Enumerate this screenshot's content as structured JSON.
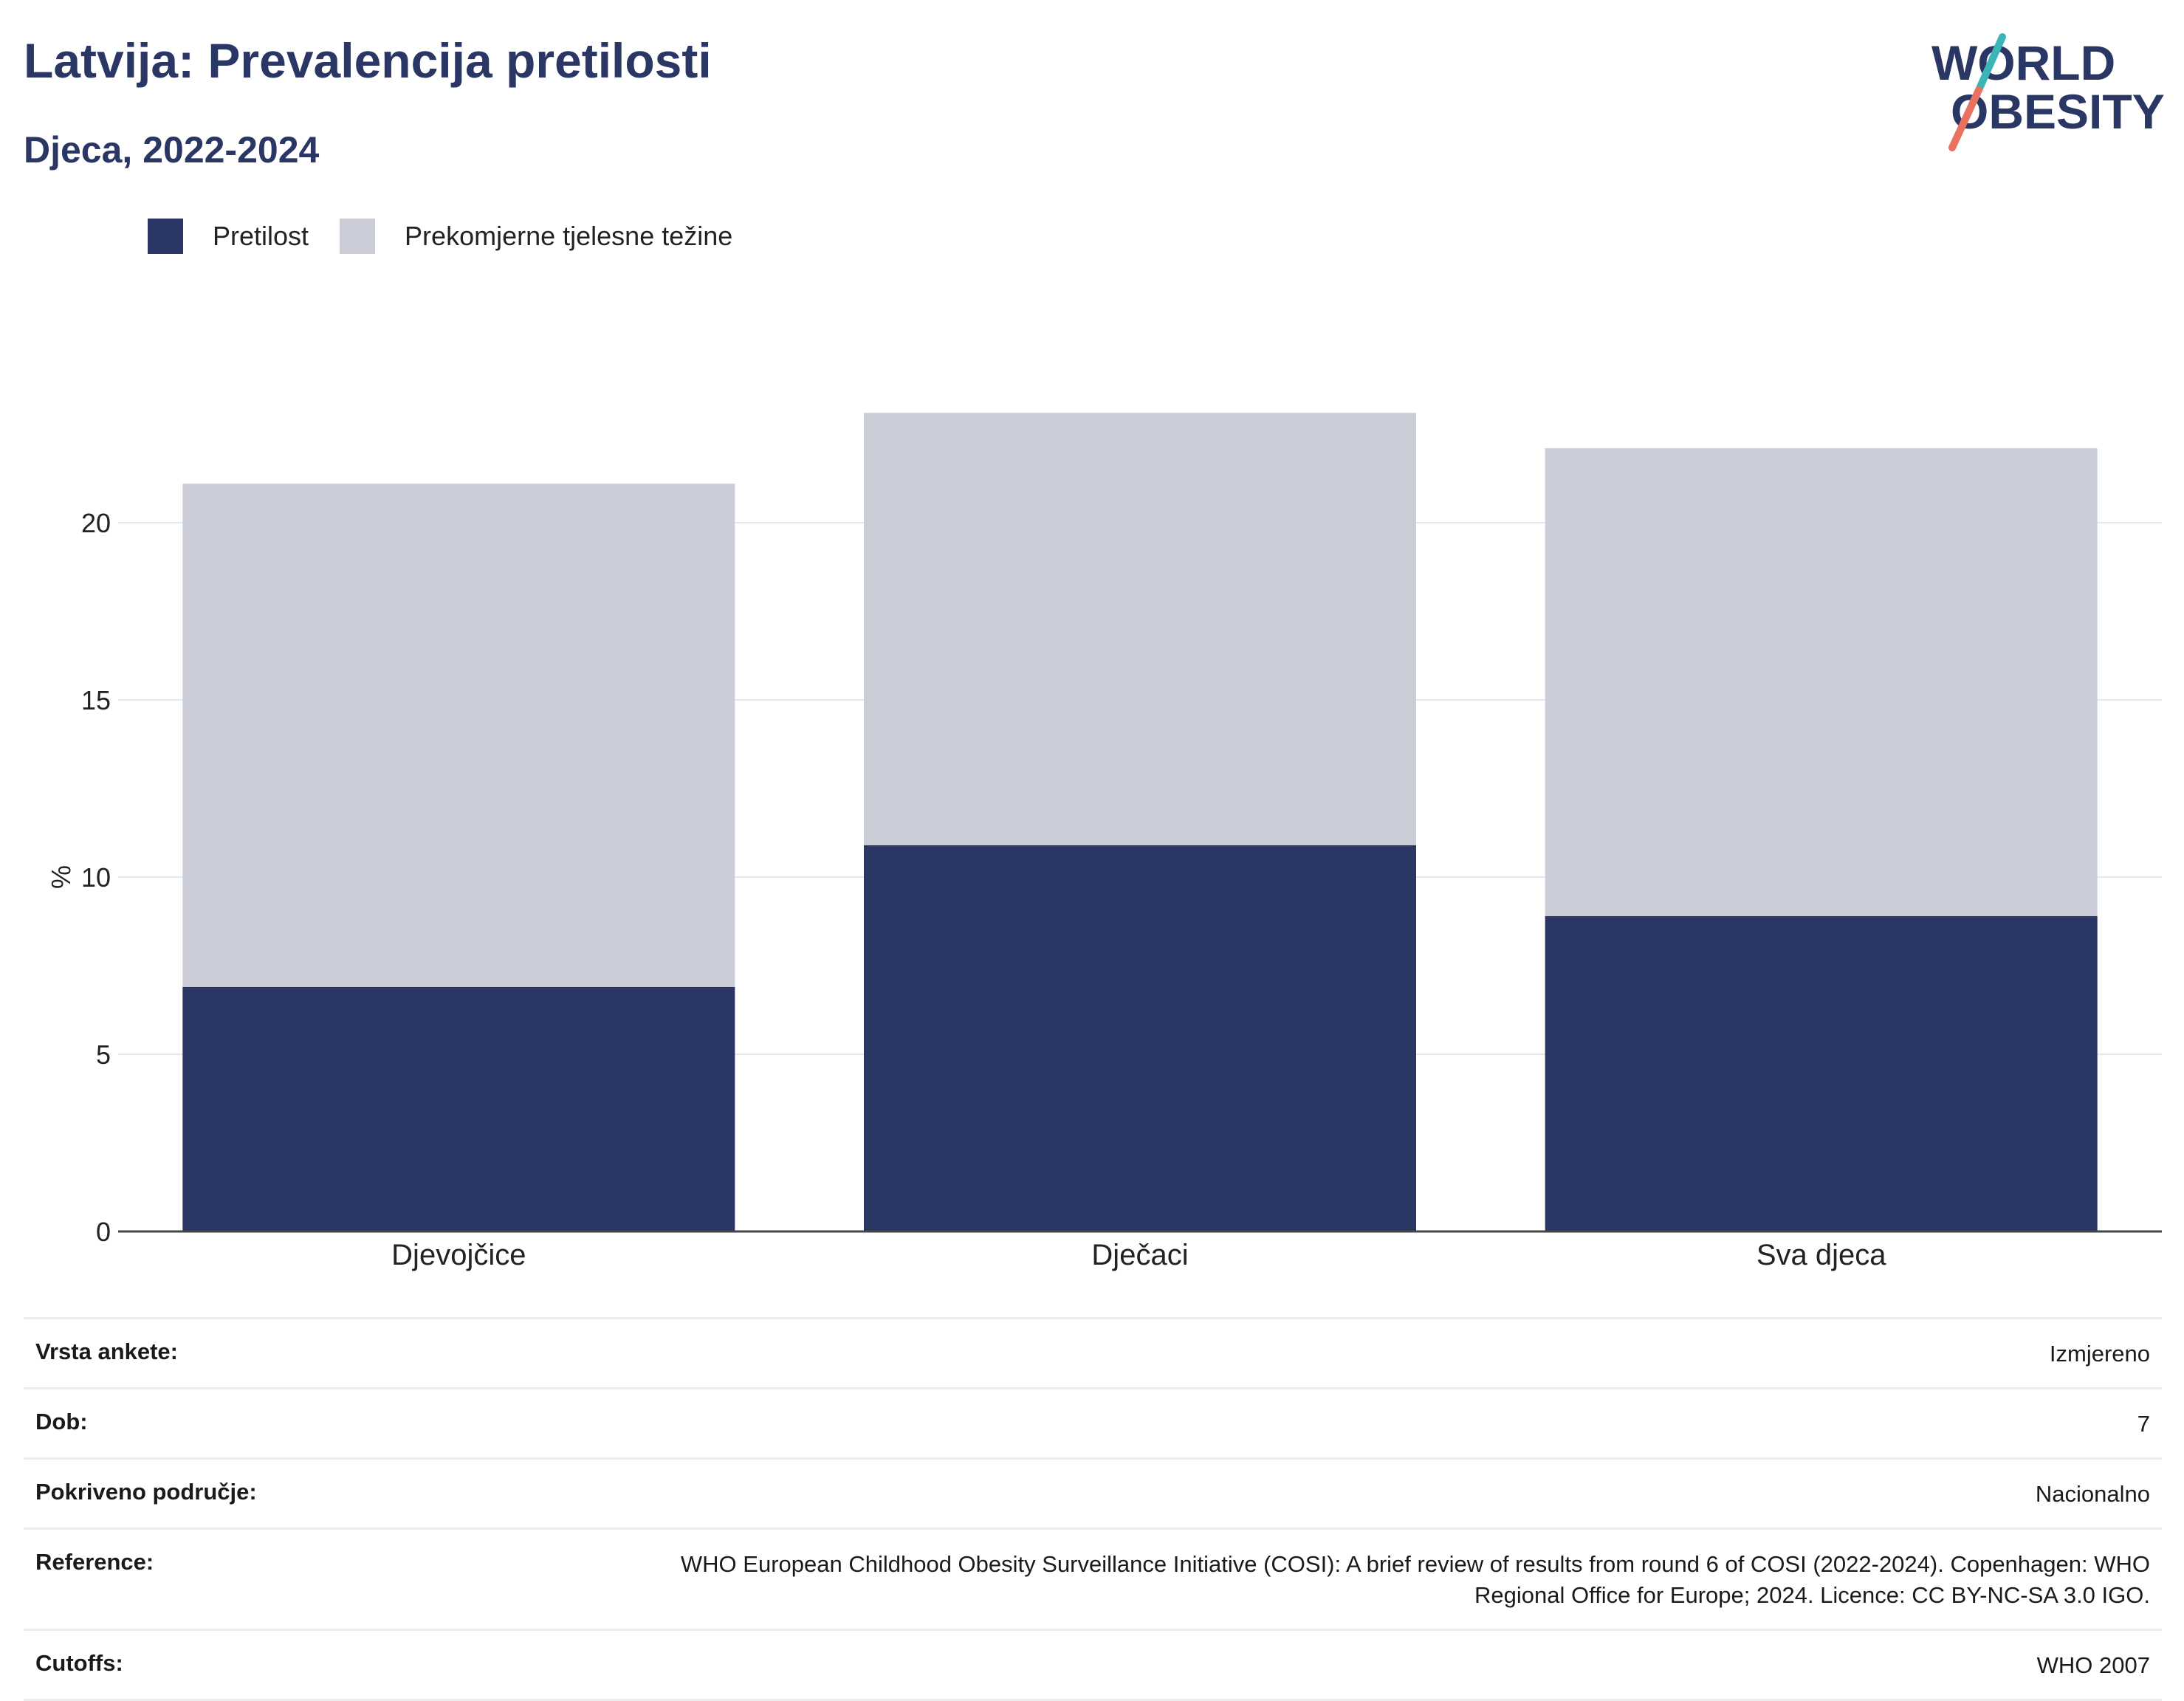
{
  "header": {
    "title": "Latvija: Prevalencija pretilosti",
    "subtitle": "Djeca, 2022-2024"
  },
  "logo": {
    "line1": "WORLD",
    "line2": "OBESITY",
    "colors": {
      "text": "#2a3663",
      "slash_teal": "#3bb5b8",
      "slash_coral": "#e8715f"
    }
  },
  "legend": [
    {
      "label": "Pretilost",
      "color": "#2a3663"
    },
    {
      "label": "Prekomjerne tjelesne težine",
      "color": "#cbcdd8"
    }
  ],
  "chart_data": {
    "type": "bar",
    "stacked": true,
    "categories": [
      "Djevojčice",
      "Dječaci",
      "Sva djeca"
    ],
    "series": [
      {
        "name": "Pretilost",
        "values": [
          6.9,
          10.9,
          8.9
        ],
        "color": "#2a3663"
      },
      {
        "name": "Prekomjerne tjelesne težine",
        "values": [
          14.2,
          12.2,
          13.2
        ],
        "color": "#cbcdd8"
      }
    ],
    "ylabel": "%",
    "yticks": [
      0,
      5,
      10,
      15,
      20
    ],
    "ylim": [
      0,
      24
    ],
    "grid": true,
    "legend_position": "top-left"
  },
  "meta": [
    {
      "label": "Vrsta ankete:",
      "value": "Izmjereno"
    },
    {
      "label": "Dob:",
      "value": "7"
    },
    {
      "label": "Pokriveno područje:",
      "value": "Nacionalno"
    },
    {
      "label": "Reference:",
      "value": "WHO European Childhood Obesity Surveillance Initiative (COSI): A brief review of results from round 6 of COSI (2022-2024). Copenhagen: WHO Regional Office for Europe; 2024. Licence: CC BY-NC-SA 3.0 IGO."
    },
    {
      "label": "Cutoffs:",
      "value": "WHO 2007"
    }
  ]
}
